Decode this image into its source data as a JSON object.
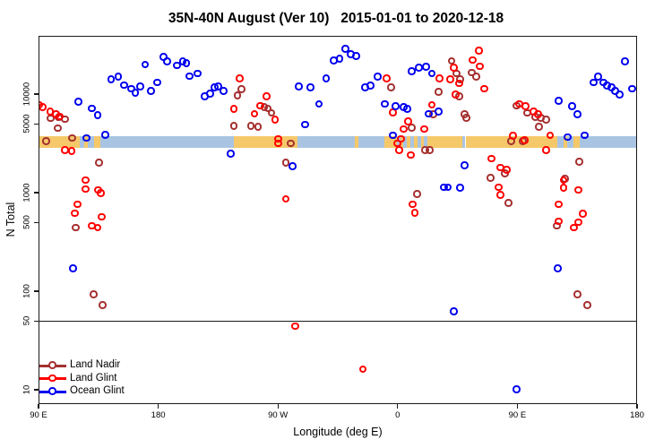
{
  "title": "35N-40N August (Ver 10)   2015-01-01 to 2020-12-18",
  "chart_data": {
    "type": "scatter",
    "title": "35N-40N August (Ver 10)   2015-01-01 to 2020-12-18",
    "xlabel": "Longitude (deg E)",
    "ylabel": "N Total",
    "y_scale": "log10",
    "x_axis": {
      "deg_span": 450,
      "note": "x axis spans 450 degrees of longitude starting at 90E, wrapping eastward to 180 twice",
      "ticks": [
        {
          "label": "90 E",
          "deg": 0
        },
        {
          "label": "180",
          "deg": 90
        },
        {
          "label": "90 W",
          "deg": 180
        },
        {
          "label": "0",
          "deg": 270
        },
        {
          "label": "90 E",
          "deg": 360
        },
        {
          "label": "180",
          "deg": 450
        }
      ]
    },
    "y_axis": {
      "ticks": [
        {
          "label": "10",
          "n": 10
        },
        {
          "label": "50",
          "n": 50
        },
        {
          "label": "100",
          "n": 100
        },
        {
          "label": "500",
          "n": 500
        },
        {
          "label": "1000",
          "n": 1000
        },
        {
          "label": "5000",
          "n": 5000
        },
        {
          "label": "10000",
          "n": 10000
        }
      ]
    },
    "reference_line_n": 50,
    "map_band": {
      "n_top": 3750,
      "n_bottom": 2850,
      "land_color": "#F5C869",
      "ocean_color": "#A9C4E2",
      "segments": [
        {
          "from": 0,
          "to": 31,
          "type": "land"
        },
        {
          "from": 31,
          "to": 34.6,
          "type": "ocean"
        },
        {
          "from": 34.6,
          "to": 37.3,
          "type": "land"
        },
        {
          "from": 37.3,
          "to": 42,
          "type": "ocean"
        },
        {
          "from": 42,
          "to": 46.8,
          "type": "land"
        },
        {
          "from": 46.8,
          "to": 146.6,
          "type": "ocean"
        },
        {
          "from": 146.6,
          "to": 194.6,
          "type": "land"
        },
        {
          "from": 194.6,
          "to": 238,
          "type": "ocean"
        },
        {
          "from": 238,
          "to": 240.5,
          "type": "land"
        },
        {
          "from": 240.5,
          "to": 260,
          "type": "ocean"
        },
        {
          "from": 260,
          "to": 269.5,
          "type": "land"
        },
        {
          "from": 269.5,
          "to": 272,
          "type": "ocean"
        },
        {
          "from": 272,
          "to": 274.5,
          "type": "land"
        },
        {
          "from": 274.5,
          "to": 277,
          "type": "ocean"
        },
        {
          "from": 277,
          "to": 279.5,
          "type": "land"
        },
        {
          "from": 279.5,
          "to": 282,
          "type": "ocean"
        },
        {
          "from": 282,
          "to": 285,
          "type": "land"
        },
        {
          "from": 285,
          "to": 287.5,
          "type": "ocean"
        },
        {
          "from": 287.5,
          "to": 290,
          "type": "land"
        },
        {
          "from": 290,
          "to": 292.5,
          "type": "ocean"
        },
        {
          "from": 292.5,
          "to": 318.5,
          "type": "land"
        },
        {
          "from": 318.5,
          "to": 321,
          "type": "ocean"
        },
        {
          "from": 321,
          "to": 390,
          "type": "land"
        },
        {
          "from": 390,
          "to": 394.6,
          "type": "ocean"
        },
        {
          "from": 394.6,
          "to": 397.3,
          "type": "land"
        },
        {
          "from": 397.3,
          "to": 402,
          "type": "ocean"
        },
        {
          "from": 402,
          "to": 406.8,
          "type": "land"
        },
        {
          "from": 406.8,
          "to": 450,
          "type": "ocean"
        }
      ]
    },
    "series": [
      {
        "name": "Land Nadir",
        "color": "#A53030",
        "points": [
          [
            6,
            3300
          ],
          [
            9.4,
            5650
          ],
          [
            14.8,
            4500
          ],
          [
            15.5,
            5770
          ],
          [
            20.2,
            5520
          ],
          [
            25.6,
            3580
          ],
          [
            28.3,
            440
          ],
          [
            41.8,
            92
          ],
          [
            45.8,
            2000
          ],
          [
            48.5,
            72
          ],
          [
            146.9,
            4730
          ],
          [
            149.6,
            9620
          ],
          [
            152.9,
            11200
          ],
          [
            159.7,
            4730
          ],
          [
            165.1,
            4630
          ],
          [
            169.8,
            7300
          ],
          [
            172.5,
            7100
          ],
          [
            175.2,
            6430
          ],
          [
            186,
            2000
          ],
          [
            190,
            3130
          ],
          [
            265.4,
            11600
          ],
          [
            280.9,
            4530
          ],
          [
            284.9,
            960
          ],
          [
            291,
            2680
          ],
          [
            294.4,
            2680
          ],
          [
            297.1,
            6200
          ],
          [
            301.1,
            10500
          ],
          [
            310.6,
            21500
          ],
          [
            314.6,
            16100
          ],
          [
            316.6,
            9400
          ],
          [
            317.3,
            14100
          ],
          [
            320.6,
            6200
          ],
          [
            322,
            5700
          ],
          [
            326,
            16400
          ],
          [
            329.4,
            14900
          ],
          [
            340.2,
            1400
          ],
          [
            351,
            1560
          ],
          [
            353.7,
            780
          ],
          [
            355.6,
            3320
          ],
          [
            359.7,
            7600
          ],
          [
            364.4,
            3320
          ],
          [
            367.8,
            6430
          ],
          [
            373.9,
            5800
          ],
          [
            376.5,
            4630
          ],
          [
            377.9,
            5700
          ],
          [
            381.9,
            5480
          ],
          [
            390,
            460
          ],
          [
            396.1,
            1370
          ],
          [
            405.5,
            92
          ],
          [
            406.9,
            2040
          ],
          [
            412.9,
            72
          ]
        ]
      },
      {
        "name": "Land Glint",
        "color": "#FF0000",
        "points": [
          [
            0.5,
            7700
          ],
          [
            3.4,
            7300
          ],
          [
            8.8,
            6600
          ],
          [
            13.5,
            6200
          ],
          [
            16.2,
            5900
          ],
          [
            20,
            2680
          ],
          [
            25,
            2620
          ],
          [
            27.6,
            615
          ],
          [
            29.6,
            760
          ],
          [
            35.7,
            1330
          ],
          [
            35.7,
            1080
          ],
          [
            40.4,
            460
          ],
          [
            44.5,
            440
          ],
          [
            45,
            1060
          ],
          [
            47,
            980
          ],
          [
            47.8,
            565
          ],
          [
            146.9,
            7070
          ],
          [
            151.6,
            14400
          ],
          [
            162.4,
            6300
          ],
          [
            167,
            7600
          ],
          [
            171.8,
            9400
          ],
          [
            177.9,
            5480
          ],
          [
            180.5,
            3500
          ],
          [
            180.5,
            3130
          ],
          [
            186,
            860
          ],
          [
            193.3,
            44
          ],
          [
            243.9,
            16
          ],
          [
            262,
            14400
          ],
          [
            266.8,
            6500
          ],
          [
            270.1,
            3130
          ],
          [
            271.5,
            2680
          ],
          [
            272.8,
            3500
          ],
          [
            274.8,
            4400
          ],
          [
            278.2,
            5230
          ],
          [
            280.2,
            2400
          ],
          [
            281.6,
            760
          ],
          [
            283,
            620
          ],
          [
            290.3,
            4400
          ],
          [
            295.8,
            7750
          ],
          [
            301.8,
            14400
          ],
          [
            309.9,
            14100
          ],
          [
            312.6,
            18400
          ],
          [
            313.9,
            9800
          ],
          [
            316.6,
            12800
          ],
          [
            326.7,
            22000
          ],
          [
            331.4,
            27500
          ],
          [
            332.1,
            19000
          ],
          [
            335.5,
            11300
          ],
          [
            340.9,
            2200
          ],
          [
            346.2,
            1130
          ],
          [
            347.6,
            1780
          ],
          [
            347.6,
            940
          ],
          [
            352.3,
            1700
          ],
          [
            357,
            3740
          ],
          [
            361.7,
            7900
          ],
          [
            365.8,
            3380
          ],
          [
            366.4,
            7500
          ],
          [
            372.5,
            6600
          ],
          [
            375.9,
            6200
          ],
          [
            381.9,
            2680
          ],
          [
            384.7,
            3800
          ],
          [
            391.4,
            760
          ],
          [
            391.4,
            510
          ],
          [
            394.8,
            1330
          ],
          [
            394.8,
            1110
          ],
          [
            402.8,
            440
          ],
          [
            406.2,
            1060
          ],
          [
            406.2,
            500
          ],
          [
            409.6,
            610
          ]
        ]
      },
      {
        "name": "Ocean Glint",
        "color": "#0000EE",
        "points": [
          [
            26.3,
            170
          ],
          [
            30.3,
            8300
          ],
          [
            36.4,
            3580
          ],
          [
            40.4,
            7140
          ],
          [
            44.5,
            6080
          ],
          [
            50.5,
            3830
          ],
          [
            54.6,
            14000
          ],
          [
            60,
            14900
          ],
          [
            64.7,
            12300
          ],
          [
            70,
            11300
          ],
          [
            72.8,
            10230
          ],
          [
            76.8,
            11900
          ],
          [
            80.2,
            19800
          ],
          [
            84.9,
            10700
          ],
          [
            89.6,
            13100
          ],
          [
            94.3,
            23600
          ],
          [
            97,
            21300
          ],
          [
            104.4,
            19400
          ],
          [
            108.5,
            21300
          ],
          [
            111.2,
            20400
          ],
          [
            113.8,
            15100
          ],
          [
            119.9,
            16100
          ],
          [
            125.3,
            9400
          ],
          [
            129.3,
            10000
          ],
          [
            132.7,
            11600
          ],
          [
            135.4,
            11900
          ],
          [
            139.4,
            10700
          ],
          [
            144.8,
            2470
          ],
          [
            191.3,
            1840
          ],
          [
            196,
            11900
          ],
          [
            200.7,
            4900
          ],
          [
            204.8,
            11600
          ],
          [
            210.9,
            7900
          ],
          [
            216.3,
            14400
          ],
          [
            222.3,
            21800
          ],
          [
            226.4,
            22700
          ],
          [
            231,
            28700
          ],
          [
            235,
            25200
          ],
          [
            239,
            24100
          ],
          [
            245.9,
            11600
          ],
          [
            249.9,
            12100
          ],
          [
            255.3,
            15000
          ],
          [
            260.7,
            7900
          ],
          [
            266.8,
            3800
          ],
          [
            268.8,
            7500
          ],
          [
            274.8,
            7300
          ],
          [
            277.5,
            7070
          ],
          [
            280.9,
            16900
          ],
          [
            286.3,
            18400
          ],
          [
            291.7,
            18800
          ],
          [
            293.7,
            6300
          ],
          [
            295.8,
            16100
          ],
          [
            301.1,
            6600
          ],
          [
            305,
            1130
          ],
          [
            307.9,
            1130
          ],
          [
            312.6,
            62
          ],
          [
            317.3,
            1110
          ],
          [
            320.6,
            1880
          ],
          [
            359.7,
            10
          ],
          [
            390.7,
            170
          ],
          [
            391.4,
            8500
          ],
          [
            398.1,
            3630
          ],
          [
            401.5,
            7500
          ],
          [
            405.5,
            6200
          ],
          [
            410.9,
            3800
          ],
          [
            417.6,
            13100
          ],
          [
            421,
            15000
          ],
          [
            425.1,
            13100
          ],
          [
            427.8,
            12100
          ],
          [
            431.1,
            11600
          ],
          [
            433.8,
            10700
          ],
          [
            437.2,
            9800
          ],
          [
            441.2,
            21300
          ],
          [
            446.6,
            11300
          ]
        ]
      }
    ],
    "legend": {
      "position": "bottom-left",
      "items": [
        {
          "label": "Land Nadir",
          "color": "#A53030"
        },
        {
          "label": "Land Glint",
          "color": "#FF0000"
        },
        {
          "label": "Ocean Glint",
          "color": "#0000EE"
        }
      ]
    }
  }
}
